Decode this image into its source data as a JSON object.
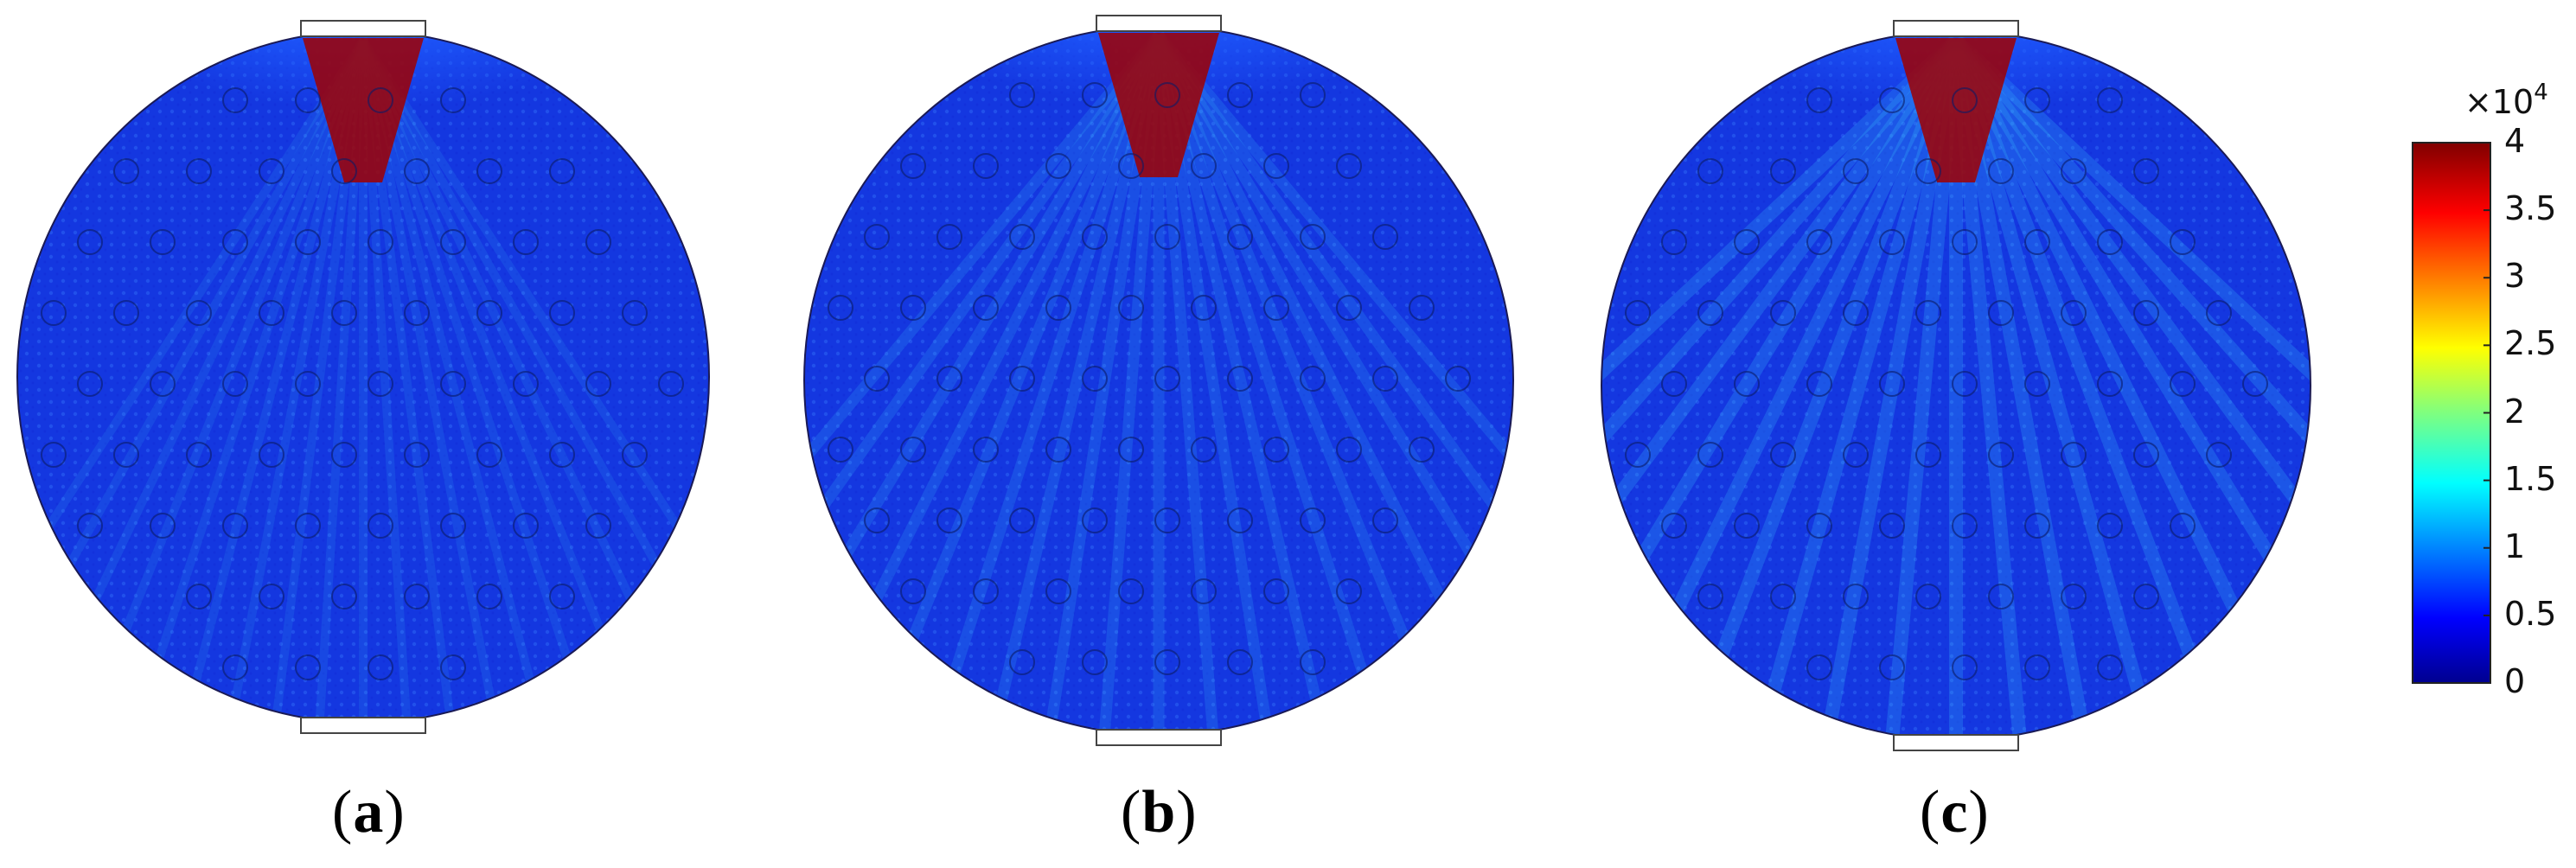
{
  "panels": [
    {
      "id": "a",
      "label_open": "(",
      "label_letter": "a",
      "label_close": ")"
    },
    {
      "id": "b",
      "label_open": "(",
      "label_letter": "b",
      "label_close": ")"
    },
    {
      "id": "c",
      "label_open": "(",
      "label_letter": "c",
      "label_close": ")"
    }
  ],
  "colorbar": {
    "exponent_prefix": "×10",
    "exponent_power": "4",
    "ticks": [
      "4",
      "3.5",
      "3",
      "2.5",
      "2",
      "1.5",
      "1",
      "0.5",
      "0"
    ],
    "range": [
      0,
      4
    ],
    "colors": [
      "#00008f",
      "#0000ff",
      "#00ffff",
      "#ffff00",
      "#ff0000",
      "#800000"
    ]
  }
}
